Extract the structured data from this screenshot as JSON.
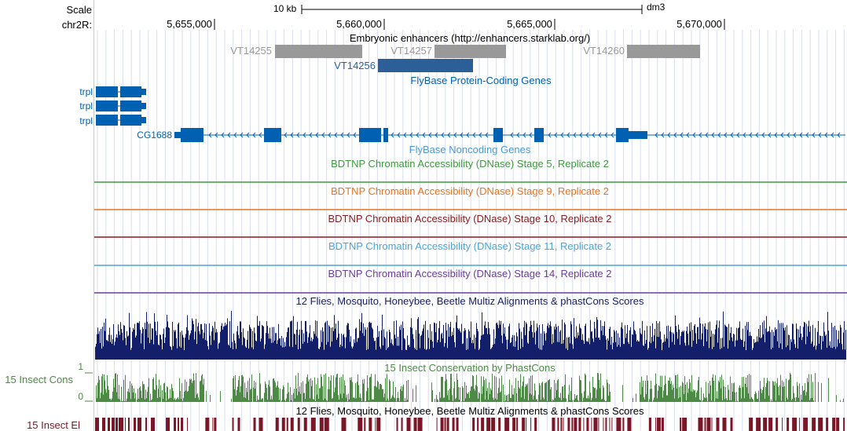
{
  "ruler": {
    "scale_label": "Scale",
    "scale_bar_text": "10 kb",
    "assembly": "dm3",
    "chrom_label": "chr2R:",
    "ticks": [
      "5,655,000",
      "5,660,000",
      "5,665,000",
      "5,670,000"
    ]
  },
  "tracks": {
    "enhancers": {
      "title": "Embryonic enhancers (http://enhancers.starklab.org/)",
      "items": [
        {
          "name": "VT14255",
          "color": "#999999"
        },
        {
          "name": "VT14257",
          "color": "#999999"
        },
        {
          "name": "VT14260",
          "color": "#999999"
        },
        {
          "name": "VT14256",
          "color": "#2c5f98"
        }
      ]
    },
    "flybase_coding": {
      "title": "FlyBase Protein-Coding Genes",
      "color": "#0061b3",
      "genes": [
        {
          "name": "trpl"
        },
        {
          "name": "trpl"
        },
        {
          "name": "trpl"
        },
        {
          "name": "CG1688"
        }
      ]
    },
    "flybase_noncoding": {
      "title": "FlyBase Noncoding Genes",
      "color": "#4a9ad6"
    },
    "dnase": [
      {
        "title": "BDTNP Chromatin Accessibility (DNase) Stage 5, Replicate 2",
        "color": "#3c9b3c"
      },
      {
        "title": "BDTNP Chromatin Accessibility (DNase) Stage 9, Replicate 2",
        "color": "#e8741f"
      },
      {
        "title": "BDTNP Chromatin Accessibility (DNase) Stage 10, Replicate 2",
        "color": "#8b1a1a"
      },
      {
        "title": "BDTNP Chromatin Accessibility (DNase) Stage 11, Replicate 2",
        "color": "#4ba6d6"
      },
      {
        "title": "BDTNP Chromatin Accessibility (DNase) Stage 14, Replicate 2",
        "color": "#6a3d9a"
      }
    ],
    "multiz": {
      "title": "12 Flies, Mosquito, Honeybee, Beetle Multiz Alignments & phastCons Scores",
      "color": "#141f6b"
    },
    "cons15": {
      "title": "15 Insect Conservation by PhastCons",
      "side_label": "15 Insect Cons",
      "axis_max": "1",
      "axis_min": "0",
      "color": "#4d8a45"
    },
    "elements": {
      "title": "12 Flies, Mosquito, Honeybee, Beetle Multiz Alignments & phastCons Scores",
      "side_label": "15 Insect El",
      "color": "#7b1628"
    }
  }
}
